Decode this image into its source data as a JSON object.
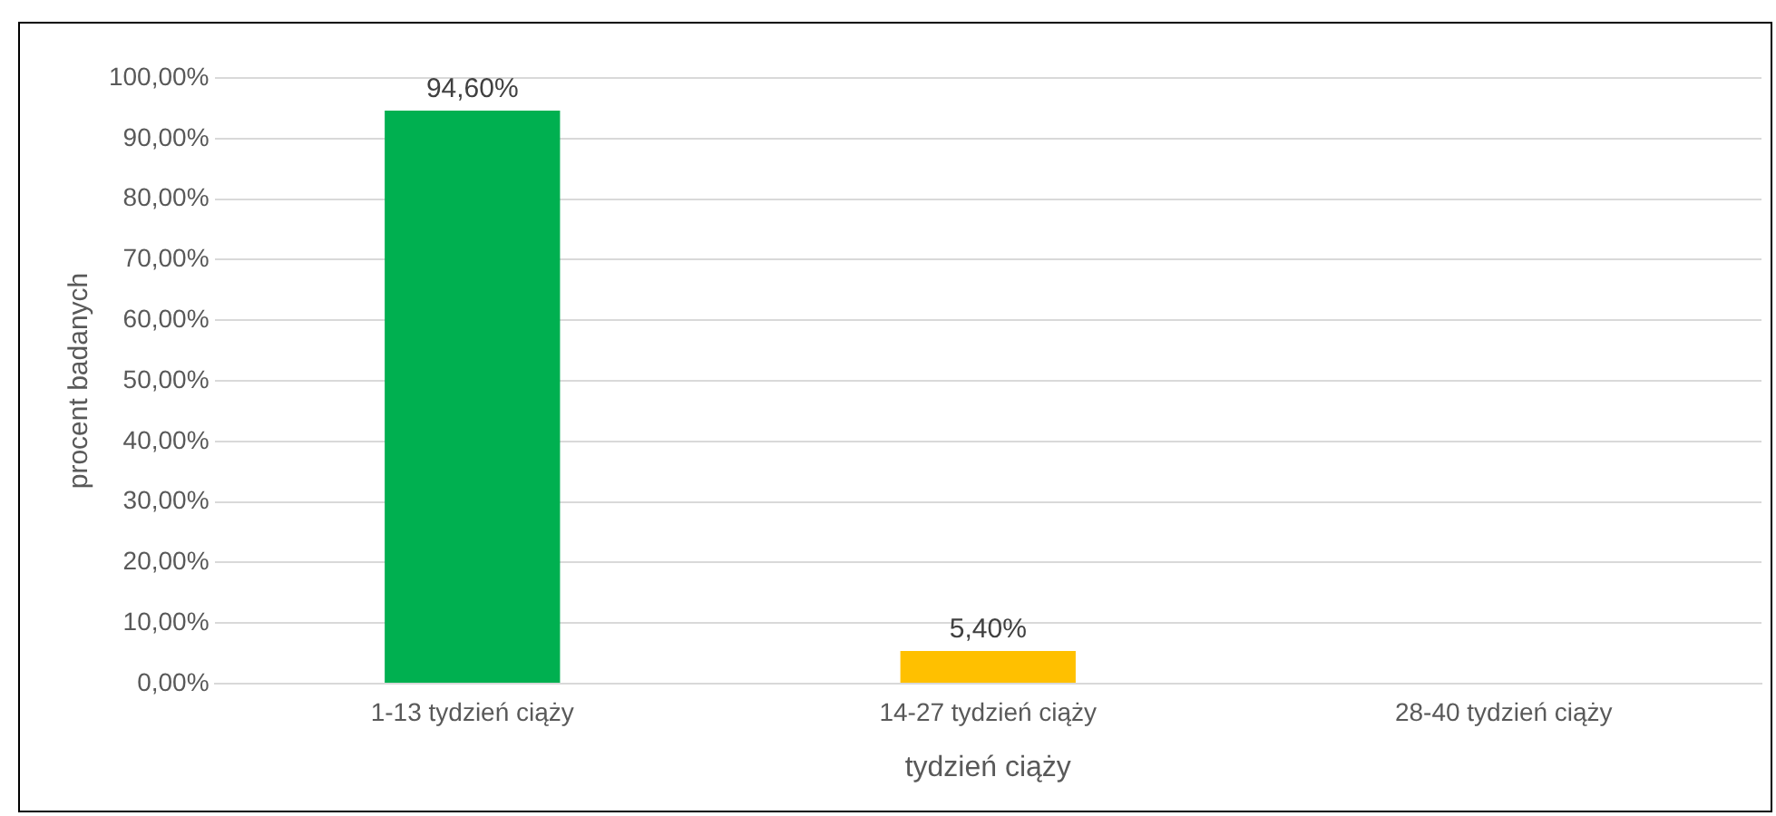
{
  "chart_data": {
    "type": "bar",
    "xlabel": "tydzień ciąży",
    "ylabel": "procent badanych",
    "categories": [
      "1-13 tydzień ciąży",
      "14-27 tydzień ciąży",
      "28-40 tydzień ciąży"
    ],
    "values": [
      94.6,
      5.4,
      null
    ],
    "colors": [
      "#00b050",
      "#ffc000",
      "#a5a5a5"
    ],
    "value_labels": [
      "94,60%",
      "5,40%",
      null
    ],
    "ylim": [
      0,
      100
    ],
    "yticks": [
      {
        "value": 0,
        "label": "0,00%"
      },
      {
        "value": 10,
        "label": "10,00%"
      },
      {
        "value": 20,
        "label": "20,00%"
      },
      {
        "value": 30,
        "label": "30,00%"
      },
      {
        "value": 40,
        "label": "40,00%"
      },
      {
        "value": 50,
        "label": "50,00%"
      },
      {
        "value": 60,
        "label": "60,00%"
      },
      {
        "value": 70,
        "label": "70,00%"
      },
      {
        "value": 80,
        "label": "80,00%"
      },
      {
        "value": 90,
        "label": "90,00%"
      },
      {
        "value": 100,
        "label": "100,00%"
      }
    ],
    "grid": "y"
  }
}
